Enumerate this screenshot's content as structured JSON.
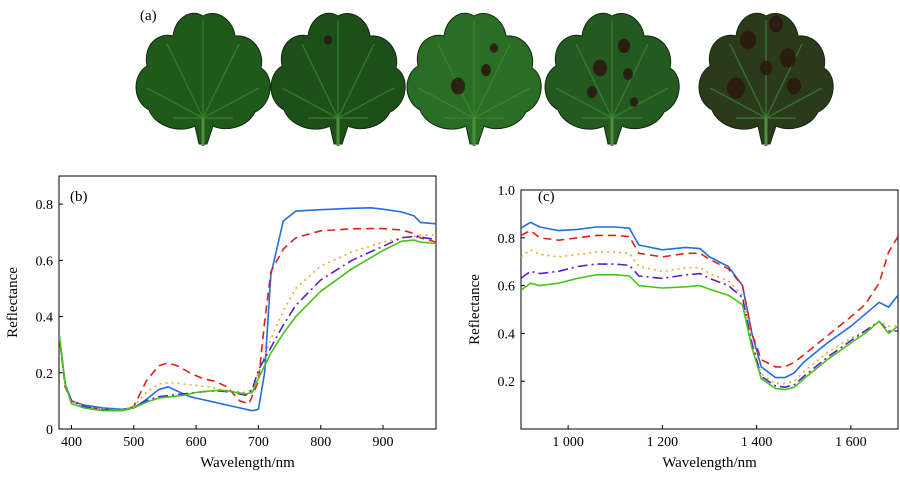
{
  "panel_labels": {
    "a": "(a)",
    "b": "(b)",
    "c": "(c)"
  },
  "leaf_images": {
    "description_names": [
      "leaf-healthy",
      "leaf-stage-1",
      "leaf-stage-2",
      "leaf-stage-3",
      "leaf-stage-4"
    ],
    "lesion_counts": [
      0,
      1,
      3,
      5,
      6
    ],
    "leaf_colors": [
      "#1f5a1a",
      "#1d4f19",
      "#2a6e25",
      "#245a1f",
      "#2a3a1a"
    ],
    "lesion_color": "#2b1a10"
  },
  "chart_data": [
    {
      "type": "line",
      "id": "b",
      "title": "",
      "xlabel": "Wavelength/nm",
      "ylabel": "Reflectance",
      "xlim": [
        380,
        985
      ],
      "ylim": [
        0,
        0.9
      ],
      "xticks": [
        400,
        500,
        600,
        700,
        800,
        900
      ],
      "xtick_labels": [
        "400",
        "500",
        "600",
        "700",
        "800",
        "900"
      ],
      "yticks": [
        0,
        0.2,
        0.4,
        0.6,
        0.8
      ],
      "ytick_labels": [
        "0",
        "0.2",
        "0.4",
        "0.6",
        "0.8"
      ],
      "grid": false,
      "legend": "none",
      "series": [
        {
          "color": "#1f6fe0",
          "dash": "solid",
          "x": [
            380,
            390,
            400,
            420,
            450,
            480,
            500,
            520,
            540,
            555,
            570,
            590,
            610,
            630,
            650,
            670,
            690,
            700,
            710,
            720,
            740,
            760,
            800,
            850,
            880,
            900,
            930,
            950,
            960,
            985
          ],
          "y": [
            0.34,
            0.16,
            0.1,
            0.085,
            0.075,
            0.07,
            0.075,
            0.105,
            0.14,
            0.15,
            0.135,
            0.115,
            0.105,
            0.095,
            0.085,
            0.075,
            0.065,
            0.07,
            0.2,
            0.55,
            0.74,
            0.775,
            0.78,
            0.785,
            0.787,
            0.782,
            0.772,
            0.758,
            0.735,
            0.73
          ]
        },
        {
          "color": "#e0211a",
          "dash": "8,5",
          "x": [
            380,
            390,
            400,
            420,
            450,
            480,
            500,
            520,
            540,
            555,
            570,
            590,
            610,
            630,
            650,
            670,
            685,
            700,
            710,
            720,
            740,
            760,
            800,
            850,
            880,
            900,
            930,
            950,
            960,
            985
          ],
          "y": [
            0.34,
            0.15,
            0.1,
            0.078,
            0.07,
            0.065,
            0.08,
            0.17,
            0.225,
            0.235,
            0.225,
            0.2,
            0.18,
            0.17,
            0.15,
            0.1,
            0.09,
            0.17,
            0.38,
            0.56,
            0.64,
            0.68,
            0.705,
            0.712,
            0.713,
            0.713,
            0.708,
            0.695,
            0.68,
            0.665
          ]
        },
        {
          "color": "#e8a832",
          "dash": "2,4",
          "x": [
            380,
            390,
            400,
            420,
            450,
            480,
            500,
            520,
            540,
            560,
            580,
            600,
            620,
            640,
            660,
            680,
            690,
            700,
            720,
            740,
            760,
            800,
            850,
            900,
            930,
            950,
            960,
            985
          ],
          "y": [
            0.34,
            0.16,
            0.1,
            0.08,
            0.07,
            0.068,
            0.08,
            0.13,
            0.16,
            0.165,
            0.16,
            0.155,
            0.15,
            0.14,
            0.135,
            0.13,
            0.14,
            0.2,
            0.32,
            0.42,
            0.5,
            0.58,
            0.63,
            0.665,
            0.68,
            0.685,
            0.69,
            0.69
          ]
        },
        {
          "color": "#5a1fc8",
          "dash": "10,4,2,4",
          "x": [
            380,
            390,
            400,
            420,
            450,
            480,
            500,
            520,
            540,
            560,
            580,
            600,
            620,
            640,
            660,
            680,
            690,
            700,
            720,
            740,
            760,
            800,
            850,
            900,
            930,
            950,
            960,
            985
          ],
          "y": [
            0.34,
            0.16,
            0.1,
            0.08,
            0.068,
            0.065,
            0.075,
            0.1,
            0.115,
            0.12,
            0.125,
            0.13,
            0.135,
            0.135,
            0.13,
            0.12,
            0.14,
            0.21,
            0.29,
            0.37,
            0.44,
            0.53,
            0.6,
            0.65,
            0.68,
            0.685,
            0.682,
            0.675
          ]
        },
        {
          "color": "#47c41a",
          "dash": "solid",
          "x": [
            380,
            390,
            400,
            420,
            450,
            480,
            500,
            520,
            540,
            560,
            580,
            600,
            620,
            640,
            660,
            680,
            690,
            700,
            720,
            740,
            760,
            800,
            850,
            900,
            930,
            950,
            960,
            985
          ],
          "y": [
            0.34,
            0.16,
            0.09,
            0.075,
            0.065,
            0.065,
            0.075,
            0.095,
            0.11,
            0.115,
            0.12,
            0.13,
            0.135,
            0.138,
            0.132,
            0.125,
            0.13,
            0.18,
            0.27,
            0.34,
            0.4,
            0.49,
            0.57,
            0.635,
            0.668,
            0.672,
            0.665,
            0.66
          ]
        }
      ]
    },
    {
      "type": "line",
      "id": "c",
      "title": "",
      "xlabel": "Wavelength/nm",
      "ylabel": "Reflectance",
      "xlim": [
        900,
        1700
      ],
      "ylim": [
        0,
        1.0
      ],
      "xticks": [
        1000,
        1200,
        1400,
        1600
      ],
      "xtick_labels": [
        "1 000",
        "1 200",
        "1 400",
        "1 600"
      ],
      "yticks": [
        0.2,
        0.4,
        0.6,
        0.8,
        1.0
      ],
      "ytick_labels": [
        "0.2",
        "0.4",
        "0.6",
        "0.8",
        "1.0"
      ],
      "grid": false,
      "legend": "none",
      "series": [
        {
          "color": "#1f6fe0",
          "dash": "solid",
          "x": [
            900,
            920,
            940,
            980,
            1020,
            1060,
            1100,
            1130,
            1150,
            1200,
            1250,
            1280,
            1300,
            1340,
            1370,
            1390,
            1410,
            1440,
            1460,
            1480,
            1500,
            1550,
            1600,
            1630,
            1660,
            1680,
            1700
          ],
          "y": [
            0.84,
            0.865,
            0.845,
            0.83,
            0.835,
            0.845,
            0.845,
            0.84,
            0.77,
            0.75,
            0.76,
            0.755,
            0.72,
            0.68,
            0.6,
            0.4,
            0.26,
            0.215,
            0.215,
            0.235,
            0.28,
            0.36,
            0.43,
            0.48,
            0.53,
            0.51,
            0.56
          ]
        },
        {
          "color": "#e0211a",
          "dash": "8,5",
          "x": [
            900,
            920,
            940,
            980,
            1020,
            1060,
            1100,
            1130,
            1150,
            1200,
            1250,
            1280,
            1300,
            1340,
            1370,
            1390,
            1410,
            1440,
            1460,
            1480,
            1500,
            1550,
            1600,
            1630,
            1660,
            1680,
            1700
          ],
          "y": [
            0.81,
            0.83,
            0.8,
            0.79,
            0.8,
            0.81,
            0.81,
            0.805,
            0.735,
            0.72,
            0.735,
            0.735,
            0.71,
            0.67,
            0.6,
            0.4,
            0.29,
            0.26,
            0.26,
            0.28,
            0.31,
            0.39,
            0.47,
            0.52,
            0.61,
            0.74,
            0.805
          ]
        },
        {
          "color": "#e8a832",
          "dash": "2,4",
          "x": [
            900,
            920,
            940,
            980,
            1020,
            1060,
            1100,
            1130,
            1150,
            1200,
            1250,
            1280,
            1300,
            1340,
            1370,
            1390,
            1410,
            1440,
            1460,
            1480,
            1500,
            1550,
            1600,
            1630,
            1660,
            1680,
            1700
          ],
          "y": [
            0.72,
            0.75,
            0.73,
            0.72,
            0.73,
            0.74,
            0.74,
            0.735,
            0.68,
            0.66,
            0.675,
            0.675,
            0.65,
            0.62,
            0.56,
            0.36,
            0.23,
            0.19,
            0.19,
            0.2,
            0.24,
            0.32,
            0.38,
            0.41,
            0.45,
            0.43,
            0.43
          ]
        },
        {
          "color": "#5a1fc8",
          "dash": "10,4,2,4",
          "x": [
            900,
            920,
            940,
            980,
            1020,
            1060,
            1100,
            1130,
            1150,
            1200,
            1250,
            1280,
            1300,
            1340,
            1370,
            1390,
            1410,
            1440,
            1460,
            1480,
            1500,
            1550,
            1600,
            1630,
            1660,
            1680,
            1700
          ],
          "y": [
            0.63,
            0.66,
            0.65,
            0.66,
            0.68,
            0.69,
            0.69,
            0.685,
            0.64,
            0.63,
            0.645,
            0.65,
            0.63,
            0.6,
            0.55,
            0.36,
            0.22,
            0.18,
            0.175,
            0.185,
            0.22,
            0.3,
            0.37,
            0.41,
            0.45,
            0.41,
            0.41
          ]
        },
        {
          "color": "#47c41a",
          "dash": "solid",
          "x": [
            900,
            920,
            940,
            980,
            1020,
            1060,
            1100,
            1130,
            1150,
            1200,
            1250,
            1280,
            1300,
            1340,
            1370,
            1390,
            1410,
            1440,
            1460,
            1480,
            1500,
            1550,
            1600,
            1630,
            1660,
            1680,
            1700
          ],
          "y": [
            0.58,
            0.61,
            0.6,
            0.61,
            0.63,
            0.645,
            0.645,
            0.64,
            0.6,
            0.59,
            0.595,
            0.6,
            0.585,
            0.56,
            0.52,
            0.34,
            0.21,
            0.17,
            0.165,
            0.175,
            0.21,
            0.29,
            0.36,
            0.4,
            0.45,
            0.4,
            0.43
          ]
        }
      ]
    }
  ]
}
